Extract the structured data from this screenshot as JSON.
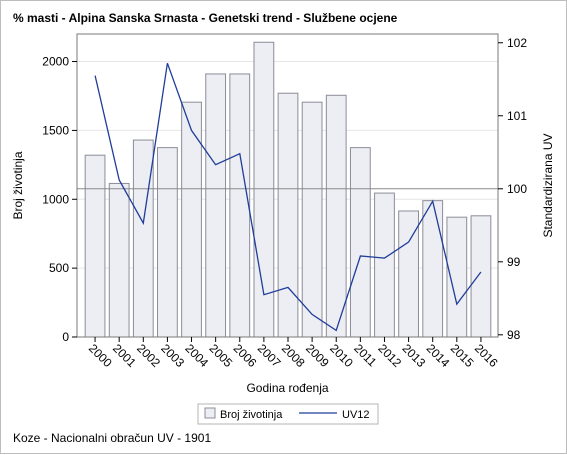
{
  "chart_data": {
    "type": "bar",
    "title": "% masti - Alpina Sanska Srnasta - Genetski trend - Službene ocjene",
    "xlabel": "Godina rođenja",
    "ylabel": "Broj životinja",
    "y2label": "Standardizirana UV",
    "footnote": "Koze - Nacionalni obračun UV - 1901",
    "categories": [
      "2000",
      "2001",
      "2002",
      "2003",
      "2004",
      "2005",
      "2006",
      "2007",
      "2008",
      "2009",
      "2010",
      "2011",
      "2012",
      "2013",
      "2014",
      "2015",
      "2016"
    ],
    "ylim": [
      0,
      2200
    ],
    "yticks": [
      0,
      500,
      1000,
      1500,
      2000
    ],
    "y2lim": [
      97.97,
      102.12
    ],
    "y2ticks": [
      98,
      99,
      100,
      101,
      102
    ],
    "reference_line_y2": 100,
    "legend_position": "bottom",
    "colors": {
      "bar_fill": "#eceef4",
      "bar_stroke": "#8c8c99",
      "line": "#1f3d99",
      "grid": "#e6e6e6"
    },
    "series": [
      {
        "name": "Broj životinja",
        "type": "bar",
        "axis": "left",
        "values": [
          1320,
          1115,
          1430,
          1375,
          1705,
          1910,
          1910,
          2140,
          1770,
          1705,
          1755,
          1375,
          1045,
          915,
          990,
          870,
          880
        ]
      },
      {
        "name": "UV12",
        "type": "line",
        "axis": "right",
        "values": [
          101.55,
          100.12,
          99.53,
          101.72,
          100.8,
          100.33,
          100.48,
          98.55,
          98.65,
          98.28,
          98.06,
          99.08,
          99.05,
          99.27,
          99.83,
          98.42,
          98.86
        ]
      }
    ]
  }
}
